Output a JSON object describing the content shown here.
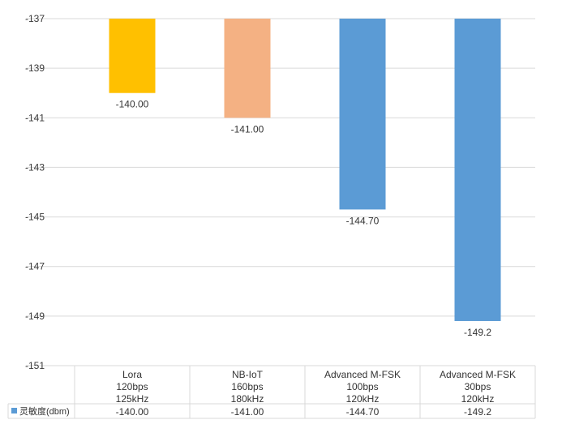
{
  "chart_data": {
    "type": "bar",
    "title": "",
    "xlabel": "",
    "ylabel": "",
    "ylim": [
      -151,
      -137
    ],
    "yticks": [
      -137,
      -139,
      -141,
      -143,
      -145,
      -147,
      -149,
      -151
    ],
    "grid": true,
    "bars_hang_from_top": true,
    "categories": [
      [
        "Lora",
        "120bps",
        "125kHz"
      ],
      [
        "NB-IoT",
        "160bps",
        "180kHz"
      ],
      [
        "Advanced M-FSK",
        "100bps",
        "120kHz"
      ],
      [
        "Advanced M-FSK",
        "30bps",
        "120kHz"
      ]
    ],
    "series": [
      {
        "name": "灵敏度(dbm)",
        "values": [
          -140.0,
          -141.0,
          -144.7,
          -149.2
        ],
        "value_labels": [
          "-140.00",
          "-141.00",
          "-144.70",
          "-149.2"
        ],
        "colors": [
          "#ffc000",
          "#f4b183",
          "#5b9bd5",
          "#5b9bd5"
        ]
      }
    ],
    "data_table": true,
    "legend_color": "#5b9bd5"
  }
}
